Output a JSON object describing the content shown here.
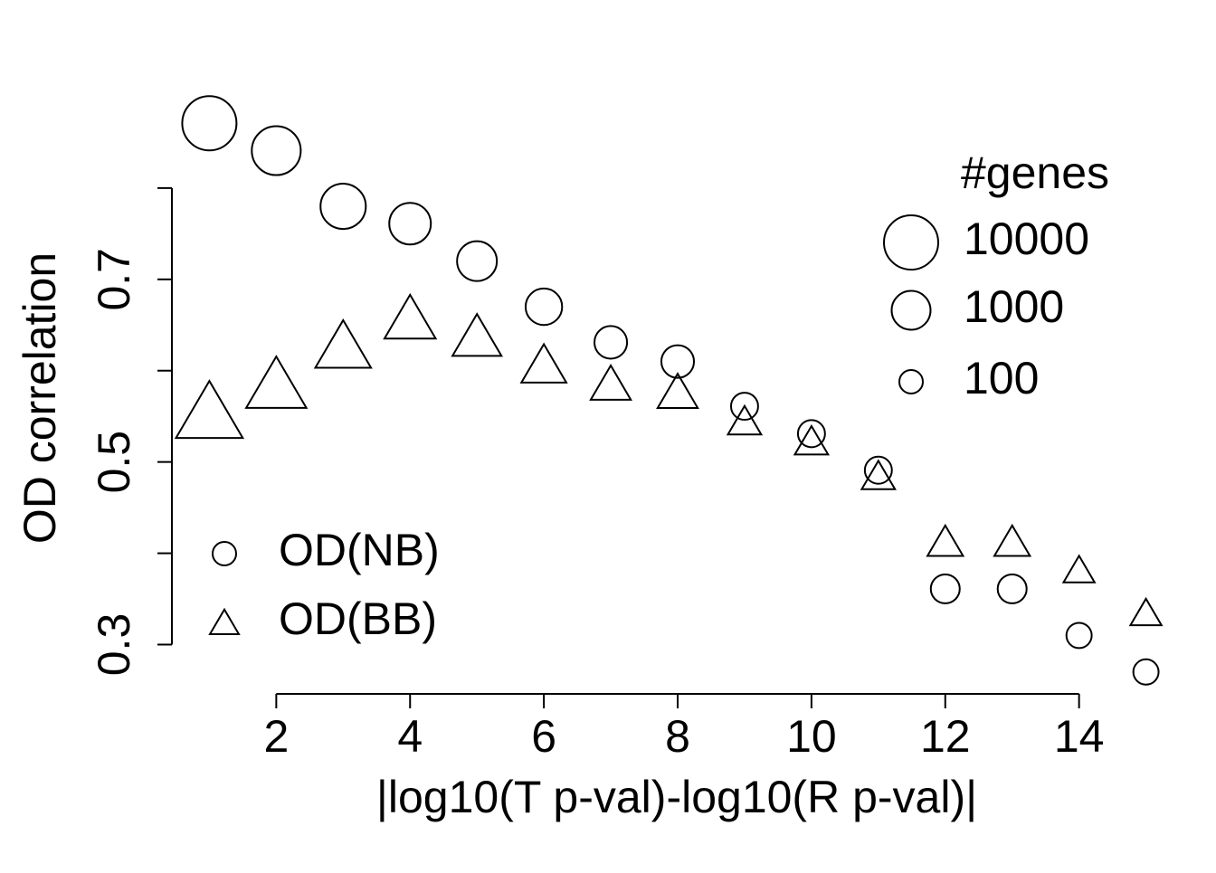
{
  "chart_data": {
    "type": "scatter",
    "xlabel": "|log10(T p-val)-log10(R p-val)|",
    "ylabel": "OD correlation",
    "x": [
      1,
      2,
      3,
      4,
      5,
      6,
      7,
      8,
      9,
      10,
      11,
      12,
      13,
      14,
      15
    ],
    "sizes": [
      10000,
      4500,
      2600,
      1500,
      1150,
      700,
      390,
      390,
      170,
      170,
      170,
      225,
      225,
      130,
      130
    ],
    "series": [
      {
        "name": "OD(NB)",
        "shape": "circle",
        "color": "#000000",
        "values": [
          0.871,
          0.841,
          0.78,
          0.761,
          0.72,
          0.67,
          0.631,
          0.61,
          0.561,
          0.531,
          0.491,
          0.361,
          0.361,
          0.31,
          0.27
        ]
      },
      {
        "name": "OD(BB)",
        "shape": "triangle",
        "color": "#000000",
        "values": [
          0.556,
          0.586,
          0.628,
          0.658,
          0.638,
          0.607,
          0.586,
          0.577,
          0.545,
          0.523,
          0.485,
          0.413,
          0.413,
          0.382,
          0.335
        ]
      }
    ],
    "xlim": [
      0.44,
      15.56
    ],
    "ylim": [
      0.246,
      0.895
    ],
    "xticks": [
      2,
      4,
      6,
      8,
      10,
      12,
      14
    ],
    "yticks": [
      0.3,
      0.5,
      0.7
    ],
    "y_minor_ticks": [
      0.4,
      0.6,
      0.8
    ],
    "size_legend": {
      "title": "#genes",
      "values": [
        10000,
        1000,
        100
      ]
    },
    "legend": "bottomleft",
    "grid": false
  }
}
